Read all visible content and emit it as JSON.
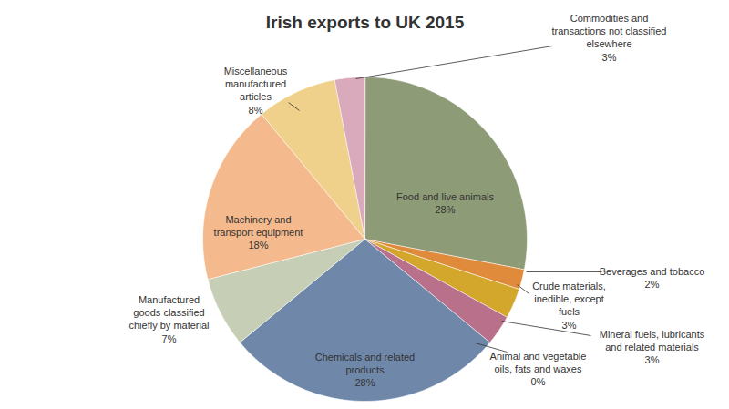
{
  "chart_data": {
    "type": "pie",
    "title": "Irish exports to UK 2015",
    "categories": [
      "Food and live animals",
      "Beverages and tobacco",
      "Crude materials, inedible, except fuels",
      "Mineral fuels, lubricants and related materials",
      "Animal and vegetable oils, fats and waxes",
      "Chemicals and related products",
      "Manufactured goods classified chiefly by material",
      "Machinery and transport equipment",
      "Miscellaneous manufactured articles",
      "Commodities and transactions not classified elsewhere"
    ],
    "values": [
      28,
      2,
      3,
      3,
      0,
      28,
      7,
      18,
      8,
      3
    ],
    "value_labels": [
      "28%",
      "2%",
      "3%",
      "3%",
      "0%",
      "28%",
      "7%",
      "18%",
      "8%",
      "3%"
    ],
    "colors": [
      "#8e9b77",
      "#e08b3c",
      "#d3a72c",
      "#b9718b",
      "#a9b5c9",
      "#6f88aa",
      "#c6ceb6",
      "#f4ba8d",
      "#efd18c",
      "#d9aabb"
    ],
    "data_labels": true
  }
}
